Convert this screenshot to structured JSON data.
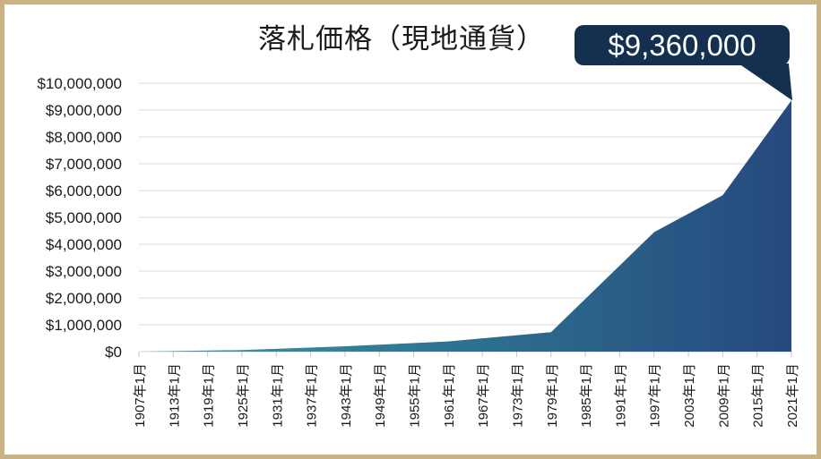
{
  "slide": {
    "title": "落札価格（現地通貨）",
    "frame_color": "#c9b284",
    "background_color": "#ffffff"
  },
  "chart_data": {
    "type": "area",
    "title": "落札価格（現地通貨）",
    "xlabel": "",
    "ylabel": "",
    "xlim_years": [
      1907,
      2021
    ],
    "ylim": [
      0,
      10000000
    ],
    "grid": true,
    "legend": false,
    "colors": {
      "gridline": "#d9d9d9",
      "tick": "#c6c6c6",
      "text": "#1a1a1a",
      "area_gradient": [
        "#3f99a3",
        "#2d7190",
        "#26497e"
      ],
      "callout_bg": "#14304e",
      "callout_text": "#ffffff"
    },
    "y_ticks": [
      {
        "value": 0,
        "label": "$0"
      },
      {
        "value": 1000000,
        "label": "$1,000,000"
      },
      {
        "value": 2000000,
        "label": "$2,000,000"
      },
      {
        "value": 3000000,
        "label": "$3,000,000"
      },
      {
        "value": 4000000,
        "label": "$4,000,000"
      },
      {
        "value": 5000000,
        "label": "$5,000,000"
      },
      {
        "value": 6000000,
        "label": "$6,000,000"
      },
      {
        "value": 7000000,
        "label": "$7,000,000"
      },
      {
        "value": 8000000,
        "label": "$8,000,000"
      },
      {
        "value": 9000000,
        "label": "$9,000,000"
      },
      {
        "value": 10000000,
        "label": "$10,000,000"
      }
    ],
    "x_ticks": [
      {
        "year": 1907,
        "label": "1907年1月"
      },
      {
        "year": 1913,
        "label": "1913年1月"
      },
      {
        "year": 1919,
        "label": "1919年1月"
      },
      {
        "year": 1925,
        "label": "1925年1月"
      },
      {
        "year": 1931,
        "label": "1931年1月"
      },
      {
        "year": 1937,
        "label": "1937年1月"
      },
      {
        "year": 1943,
        "label": "1943年1月"
      },
      {
        "year": 1949,
        "label": "1949年1月"
      },
      {
        "year": 1955,
        "label": "1955年1月"
      },
      {
        "year": 1961,
        "label": "1961年1月"
      },
      {
        "year": 1967,
        "label": "1967年1月"
      },
      {
        "year": 1973,
        "label": "1973年1月"
      },
      {
        "year": 1979,
        "label": "1979年1月"
      },
      {
        "year": 1985,
        "label": "1985年1月"
      },
      {
        "year": 1991,
        "label": "1991年1月"
      },
      {
        "year": 1997,
        "label": "1997年1月"
      },
      {
        "year": 2003,
        "label": "2003年1月"
      },
      {
        "year": 2009,
        "label": "2009年1月"
      },
      {
        "year": 2015,
        "label": "2015年1月"
      },
      {
        "year": 2021,
        "label": "2021年1月"
      }
    ],
    "points": [
      {
        "year": 1907,
        "value": 0
      },
      {
        "year": 1925,
        "value": 60000
      },
      {
        "year": 1943,
        "value": 200000
      },
      {
        "year": 1961,
        "value": 380000
      },
      {
        "year": 1979,
        "value": 725000
      },
      {
        "year": 1997,
        "value": 4450000
      },
      {
        "year": 2009,
        "value": 5830000
      },
      {
        "year": 2021,
        "value": 9360000
      }
    ],
    "annotation": {
      "label": "$9,360,000",
      "year": 2021,
      "value": 9360000
    }
  }
}
